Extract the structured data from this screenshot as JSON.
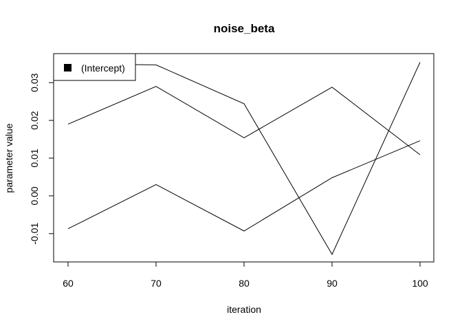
{
  "chart_data": {
    "type": "line",
    "title": "noise_beta",
    "xlabel": "iteration",
    "ylabel": "parameter value",
    "x": [
      60,
      70,
      80,
      90,
      100
    ],
    "xlim": [
      60,
      100
    ],
    "ylim": [
      -0.0155,
      0.0355
    ],
    "xticks": [
      "60",
      "70",
      "80",
      "90",
      "100"
    ],
    "yticks": [
      {
        "value": -0.01,
        "label": "-0.01"
      },
      {
        "value": 0.0,
        "label": "0.00"
      },
      {
        "value": 0.01,
        "label": "0.01"
      },
      {
        "value": 0.02,
        "label": "0.02"
      },
      {
        "value": 0.03,
        "label": "0.03"
      }
    ],
    "series": [
      {
        "values": [
          0.035,
          0.0347,
          0.0244,
          -0.0155,
          0.0354
        ]
      },
      {
        "values": [
          0.019,
          0.029,
          0.0154,
          0.0288,
          0.0109
        ]
      },
      {
        "values": [
          -0.0087,
          0.003,
          -0.0093,
          0.0048,
          0.0146
        ]
      }
    ],
    "legend": {
      "position": "top-left",
      "entries": [
        "(Intercept)"
      ]
    },
    "grid": false,
    "line_color": "#000000"
  }
}
